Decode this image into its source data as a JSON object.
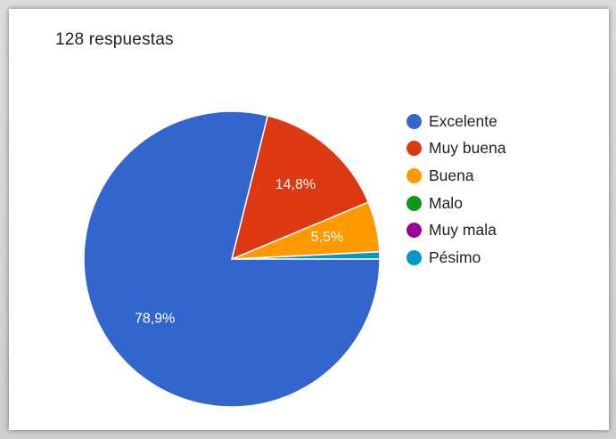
{
  "response_count_label": "128 respuestas",
  "chart_data": {
    "type": "pie",
    "categories": [
      "Excelente",
      "Muy buena",
      "Buena",
      "Malo",
      "Muy mala",
      "Pésimo"
    ],
    "values": [
      78.9,
      14.8,
      5.5,
      0,
      0,
      0.8
    ],
    "data_labels": [
      "78,9%",
      "14,8%",
      "5,5%",
      "",
      "",
      ""
    ],
    "colors": [
      "#3366cc",
      "#dc3912",
      "#ff9900",
      "#109618",
      "#990099",
      "#0099c6"
    ],
    "legend_position": "right"
  }
}
